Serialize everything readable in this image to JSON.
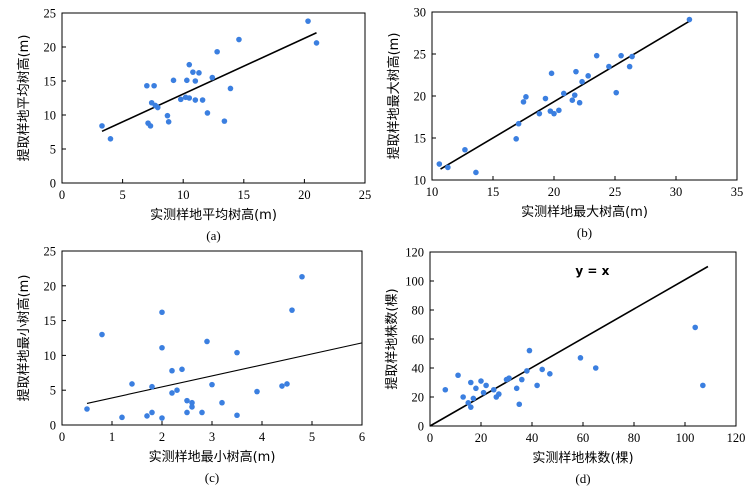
{
  "chart_data": [
    {
      "type": "scatter",
      "panel_label": "(a)",
      "xlabel": "实测样地平均树高(m)",
      "ylabel": "提取样地平均树高(m)",
      "xlim": [
        0,
        25
      ],
      "ylim": [
        0,
        25
      ],
      "xticks": [
        0,
        5,
        10,
        15,
        20,
        25
      ],
      "yticks": [
        0,
        5,
        10,
        15,
        20,
        25
      ],
      "points": [
        [
          3.3,
          8.4
        ],
        [
          4.0,
          6.5
        ],
        [
          7.0,
          14.3
        ],
        [
          7.1,
          8.8
        ],
        [
          7.3,
          8.4
        ],
        [
          7.4,
          11.8
        ],
        [
          7.6,
          14.3
        ],
        [
          7.7,
          11.4
        ],
        [
          7.9,
          11.1
        ],
        [
          8.7,
          9.9
        ],
        [
          8.8,
          9.0
        ],
        [
          9.2,
          15.1
        ],
        [
          9.8,
          12.3
        ],
        [
          10.2,
          12.6
        ],
        [
          10.3,
          15.1
        ],
        [
          10.5,
          17.4
        ],
        [
          10.5,
          12.5
        ],
        [
          10.8,
          16.3
        ],
        [
          11.0,
          12.2
        ],
        [
          11.0,
          15.0
        ],
        [
          11.3,
          16.2
        ],
        [
          11.6,
          12.2
        ],
        [
          12.0,
          10.3
        ],
        [
          12.4,
          15.5
        ],
        [
          12.8,
          19.3
        ],
        [
          13.4,
          9.1
        ],
        [
          13.9,
          13.9
        ],
        [
          14.6,
          21.1
        ],
        [
          20.3,
          23.8
        ],
        [
          21.0,
          20.6
        ]
      ],
      "fit_line": [
        [
          3.3,
          7.6
        ],
        [
          21.0,
          22.1
        ]
      ]
    },
    {
      "type": "scatter",
      "panel_label": "(b)",
      "xlabel": "实测样地最大树高(m)",
      "ylabel": "提取样地最大树高(m)",
      "xlim": [
        10,
        35
      ],
      "ylim": [
        10,
        30
      ],
      "xticks": [
        10,
        15,
        20,
        25,
        30,
        35
      ],
      "yticks": [
        10,
        15,
        20,
        25,
        30
      ],
      "points": [
        [
          10.6,
          11.9
        ],
        [
          11.3,
          11.5
        ],
        [
          12.7,
          13.6
        ],
        [
          13.6,
          10.9
        ],
        [
          16.9,
          14.9
        ],
        [
          17.1,
          16.7
        ],
        [
          17.5,
          19.3
        ],
        [
          17.7,
          19.9
        ],
        [
          18.8,
          17.9
        ],
        [
          19.3,
          19.7
        ],
        [
          19.7,
          18.2
        ],
        [
          19.8,
          22.7
        ],
        [
          20.0,
          17.9
        ],
        [
          20.4,
          18.3
        ],
        [
          20.8,
          20.3
        ],
        [
          21.5,
          19.5
        ],
        [
          21.7,
          20.1
        ],
        [
          21.8,
          22.9
        ],
        [
          22.1,
          19.2
        ],
        [
          22.3,
          21.7
        ],
        [
          22.8,
          22.4
        ],
        [
          23.5,
          24.8
        ],
        [
          24.5,
          23.5
        ],
        [
          25.1,
          20.4
        ],
        [
          25.5,
          24.8
        ],
        [
          26.2,
          23.5
        ],
        [
          26.4,
          24.7
        ],
        [
          31.1,
          29.1
        ]
      ],
      "fit_line": [
        [
          10.7,
          11.3
        ],
        [
          31.1,
          28.9
        ]
      ]
    },
    {
      "type": "scatter",
      "panel_label": "(c)",
      "xlabel": "实测样地最小树高(m)",
      "ylabel": "提取样地最小树高(m)",
      "xlim": [
        0,
        6
      ],
      "ylim": [
        0,
        25
      ],
      "xticks": [
        0,
        1,
        2,
        3,
        4,
        5,
        6
      ],
      "yticks": [
        0,
        5,
        10,
        15,
        20,
        25
      ],
      "points": [
        [
          0.5,
          2.3
        ],
        [
          0.8,
          13.0
        ],
        [
          1.2,
          1.1
        ],
        [
          1.4,
          5.9
        ],
        [
          1.7,
          1.3
        ],
        [
          1.8,
          1.8
        ],
        [
          1.8,
          5.5
        ],
        [
          2.0,
          1.0
        ],
        [
          2.0,
          11.1
        ],
        [
          2.0,
          16.2
        ],
        [
          2.2,
          4.6
        ],
        [
          2.2,
          7.8
        ],
        [
          2.3,
          5.0
        ],
        [
          2.4,
          8.0
        ],
        [
          2.5,
          3.5
        ],
        [
          2.5,
          1.8
        ],
        [
          2.6,
          3.2
        ],
        [
          2.6,
          2.6
        ],
        [
          2.8,
          1.8
        ],
        [
          2.9,
          12.0
        ],
        [
          3.0,
          5.8
        ],
        [
          3.2,
          3.2
        ],
        [
          3.5,
          10.4
        ],
        [
          3.5,
          1.4
        ],
        [
          3.9,
          4.8
        ],
        [
          4.4,
          5.6
        ],
        [
          4.5,
          5.9
        ],
        [
          4.6,
          16.5
        ],
        [
          4.8,
          21.3
        ]
      ],
      "fit_line": [
        [
          0.5,
          3.1
        ],
        [
          6.0,
          11.8
        ]
      ]
    },
    {
      "type": "scatter",
      "panel_label": "(d)",
      "xlabel": "实测样地株数(棵)",
      "ylabel": "提取样地株数(棵)",
      "annotation": "y = x",
      "xlim": [
        0,
        120
      ],
      "ylim": [
        0,
        120
      ],
      "xticks": [
        0,
        20,
        40,
        60,
        80,
        100,
        120
      ],
      "yticks": [
        0,
        20,
        40,
        60,
        80,
        100,
        120
      ],
      "points": [
        [
          6,
          25
        ],
        [
          11,
          35
        ],
        [
          13,
          20
        ],
        [
          15,
          16
        ],
        [
          16,
          30
        ],
        [
          16,
          13
        ],
        [
          17,
          19
        ],
        [
          18,
          26
        ],
        [
          20,
          31
        ],
        [
          21,
          23
        ],
        [
          22,
          28
        ],
        [
          25,
          25
        ],
        [
          26,
          20
        ],
        [
          27,
          22
        ],
        [
          30,
          32
        ],
        [
          31,
          33
        ],
        [
          34,
          26
        ],
        [
          35,
          15
        ],
        [
          36,
          32
        ],
        [
          38,
          38
        ],
        [
          39,
          52
        ],
        [
          42,
          28
        ],
        [
          44,
          39
        ],
        [
          47,
          36
        ],
        [
          59,
          47
        ],
        [
          65,
          40
        ],
        [
          104,
          68
        ],
        [
          107,
          28
        ]
      ],
      "fit_line": [
        [
          0,
          0
        ],
        [
          109,
          110
        ]
      ]
    }
  ]
}
